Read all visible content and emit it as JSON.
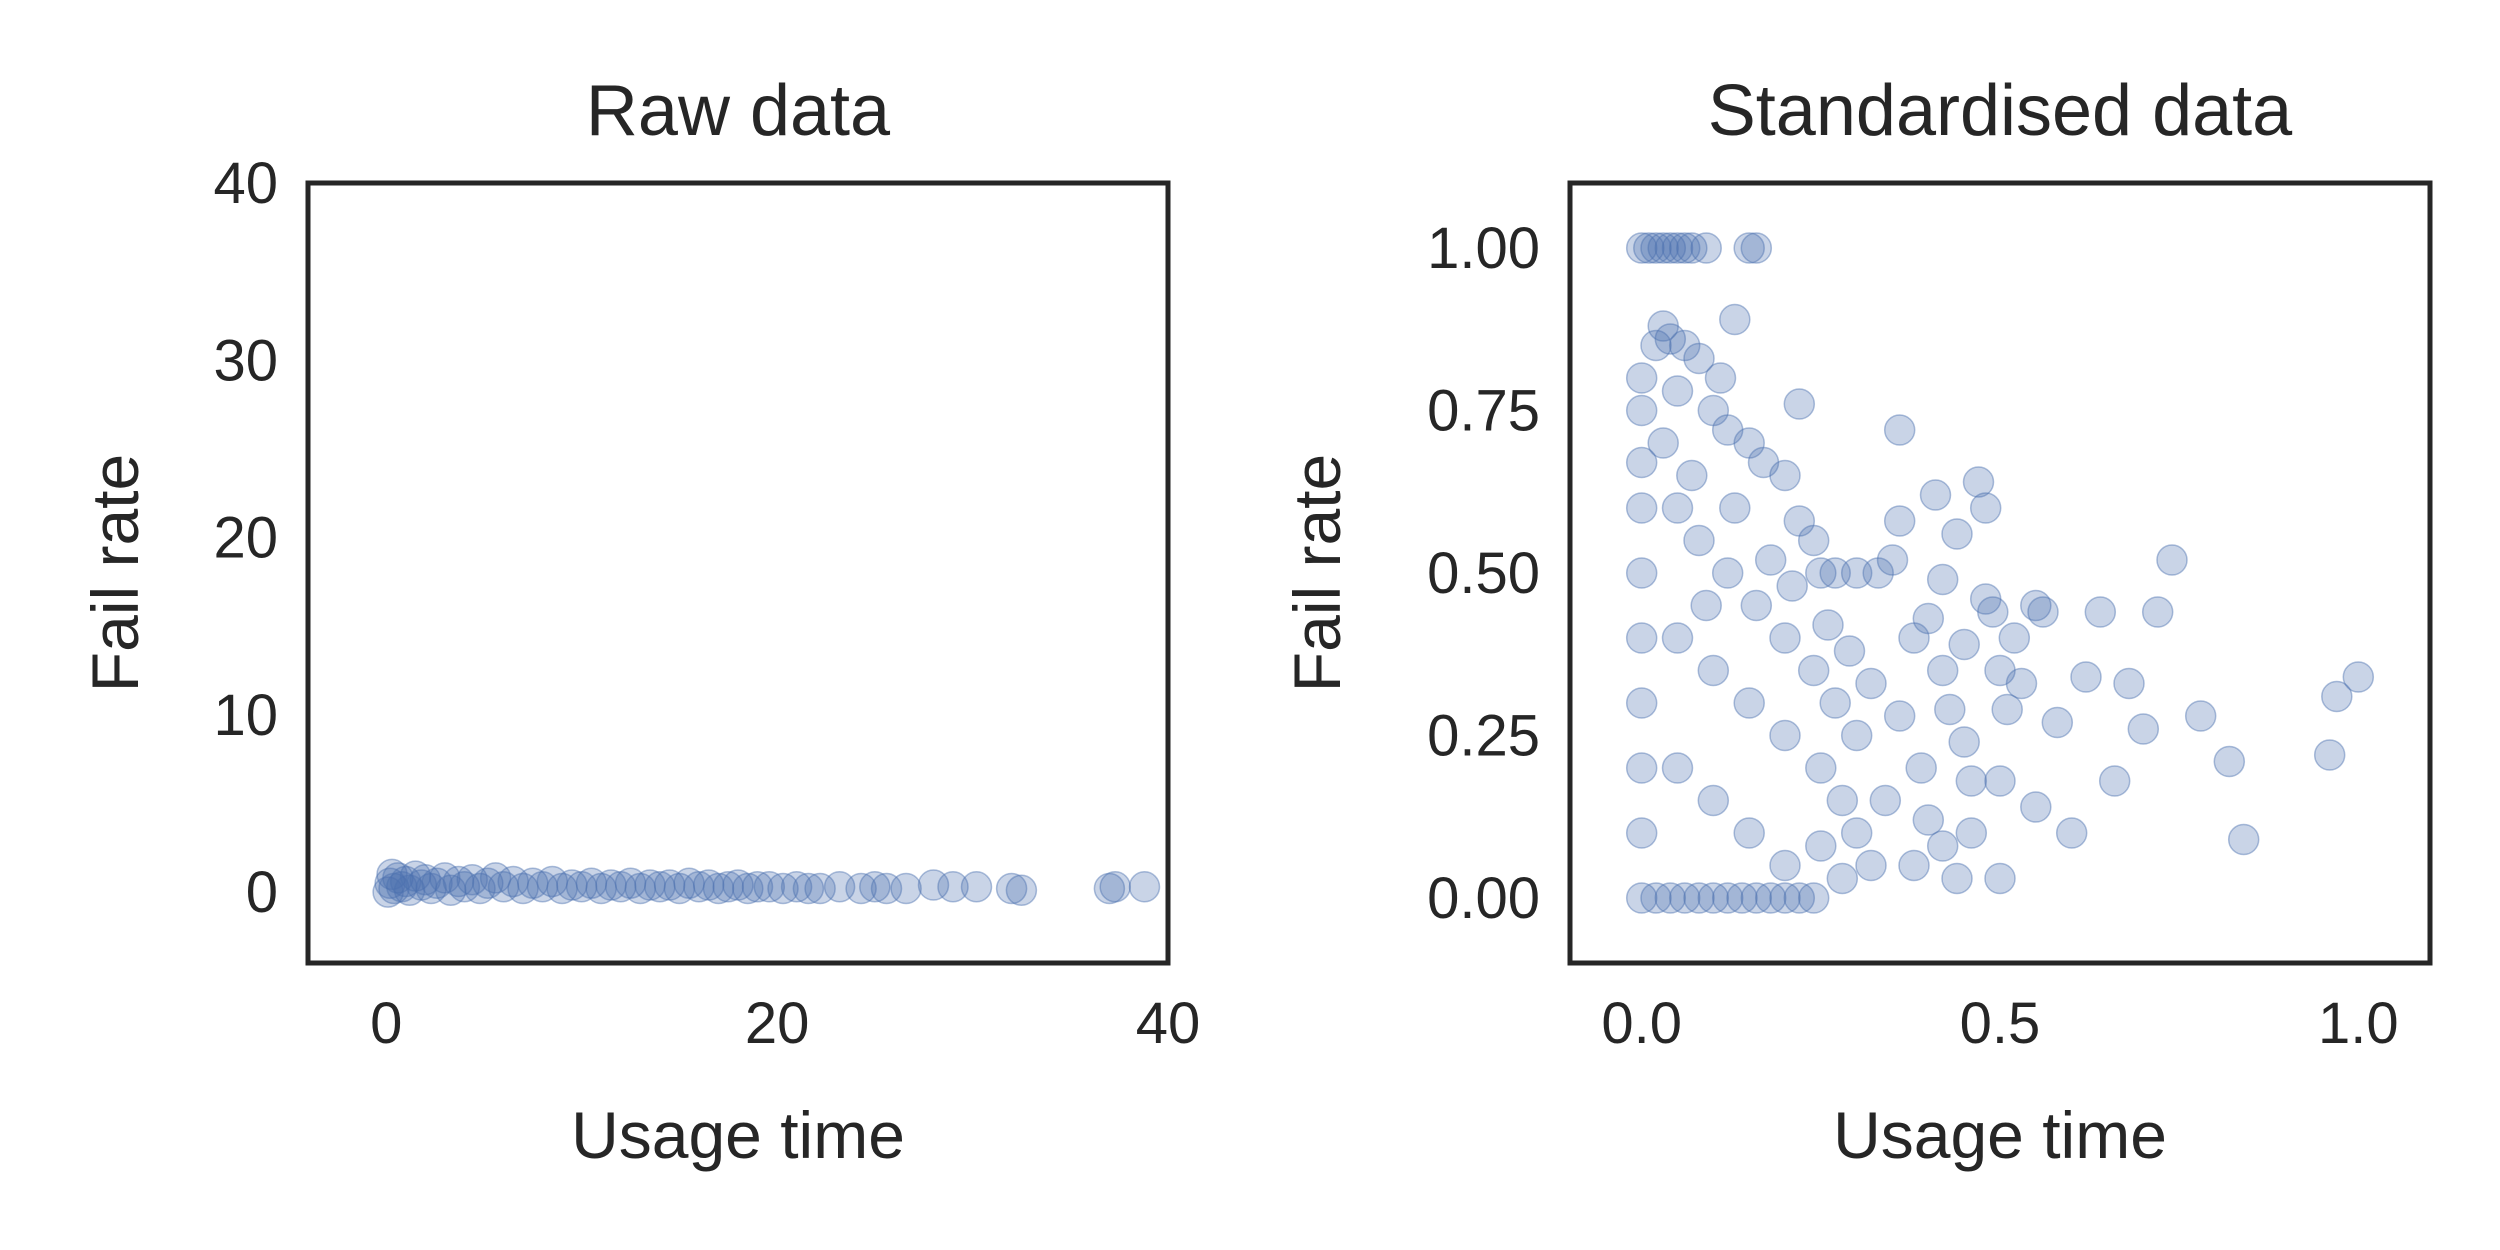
{
  "colors": {
    "point": "#4c72b0",
    "axes": "#262626",
    "text": "#262626",
    "background": "#ffffff"
  },
  "chart_data": [
    {
      "type": "scatter",
      "title": "Raw data",
      "xlabel": "Usage time",
      "ylabel": "Fail rate",
      "xlim": [
        -4,
        40
      ],
      "ylim": [
        -4,
        40
      ],
      "xticks": [
        0,
        20,
        40
      ],
      "xtick_labels": [
        "0",
        "20",
        "40"
      ],
      "yticks": [
        0,
        10,
        20,
        30,
        40
      ],
      "ytick_labels": [
        "0",
        "10",
        "20",
        "30",
        "40"
      ],
      "grid": false,
      "legend": "none",
      "point_alpha": 0.3,
      "series": [
        {
          "points": [
            [
              0.1,
              0.0
            ],
            [
              0.2,
              0.5
            ],
            [
              0.3,
              1.0
            ],
            [
              0.4,
              0.2
            ],
            [
              0.6,
              0.8
            ],
            [
              0.8,
              0.3
            ],
            [
              1.0,
              0.6
            ],
            [
              1.2,
              0.1
            ],
            [
              1.5,
              0.9
            ],
            [
              1.8,
              0.4
            ],
            [
              2.0,
              0.7
            ],
            [
              2.3,
              0.2
            ],
            [
              2.6,
              0.5
            ],
            [
              3.0,
              0.8
            ],
            [
              3.3,
              0.1
            ],
            [
              3.7,
              0.6
            ],
            [
              4.0,
              0.3
            ],
            [
              4.4,
              0.7
            ],
            [
              4.8,
              0.2
            ],
            [
              5.2,
              0.5
            ],
            [
              5.6,
              0.8
            ],
            [
              6.0,
              0.3
            ],
            [
              6.5,
              0.6
            ],
            [
              7.0,
              0.2
            ],
            [
              7.5,
              0.5
            ],
            [
              8.0,
              0.3
            ],
            [
              8.5,
              0.6
            ],
            [
              9.0,
              0.2
            ],
            [
              9.5,
              0.4
            ],
            [
              10.0,
              0.3
            ],
            [
              10.5,
              0.5
            ],
            [
              11.0,
              0.2
            ],
            [
              11.5,
              0.4
            ],
            [
              12.0,
              0.3
            ],
            [
              12.5,
              0.5
            ],
            [
              13.0,
              0.2
            ],
            [
              13.5,
              0.4
            ],
            [
              14.0,
              0.3
            ],
            [
              14.5,
              0.4
            ],
            [
              15.0,
              0.2
            ],
            [
              15.5,
              0.5
            ],
            [
              16.0,
              0.3
            ],
            [
              16.5,
              0.4
            ],
            [
              17.0,
              0.2
            ],
            [
              17.5,
              0.3
            ],
            [
              18.0,
              0.4
            ],
            [
              18.5,
              0.2
            ],
            [
              19.0,
              0.3
            ],
            [
              19.6,
              0.3
            ],
            [
              20.3,
              0.2
            ],
            [
              21.0,
              0.3
            ],
            [
              21.6,
              0.2
            ],
            [
              22.2,
              0.2
            ],
            [
              23.2,
              0.3
            ],
            [
              24.3,
              0.2
            ],
            [
              25.0,
              0.3
            ],
            [
              25.6,
              0.2
            ],
            [
              26.6,
              0.2
            ],
            [
              28.0,
              0.4
            ],
            [
              29.0,
              0.3
            ],
            [
              30.2,
              0.3
            ],
            [
              32.0,
              0.2
            ],
            [
              32.5,
              0.1
            ],
            [
              37.0,
              0.2
            ],
            [
              37.3,
              0.3
            ],
            [
              38.8,
              0.3
            ]
          ]
        }
      ]
    },
    {
      "type": "scatter",
      "title": "Standardised data",
      "xlabel": "Usage time",
      "ylabel": "Fail rate",
      "xlim": [
        -0.1,
        1.1
      ],
      "ylim": [
        -0.1,
        1.1
      ],
      "xticks": [
        0.0,
        0.5,
        1.0
      ],
      "xtick_labels": [
        "0.0",
        "0.5",
        "1.0"
      ],
      "yticks": [
        0.0,
        0.25,
        0.5,
        0.75,
        1.0
      ],
      "ytick_labels": [
        "0.00",
        "0.25",
        "0.50",
        "0.75",
        "1.00"
      ],
      "grid": false,
      "legend": "none",
      "point_alpha": 0.3,
      "series": [
        {
          "points": [
            [
              0.0,
              1.0
            ],
            [
              0.01,
              1.0
            ],
            [
              0.02,
              1.0
            ],
            [
              0.03,
              1.0
            ],
            [
              0.04,
              1.0
            ],
            [
              0.05,
              1.0
            ],
            [
              0.06,
              1.0
            ],
            [
              0.07,
              1.0
            ],
            [
              0.09,
              1.0
            ],
            [
              0.15,
              1.0
            ],
            [
              0.16,
              1.0
            ],
            [
              0.0,
              0.0
            ],
            [
              0.02,
              0.0
            ],
            [
              0.04,
              0.0
            ],
            [
              0.06,
              0.0
            ],
            [
              0.08,
              0.0
            ],
            [
              0.1,
              0.0
            ],
            [
              0.12,
              0.0
            ],
            [
              0.14,
              0.0
            ],
            [
              0.16,
              0.0
            ],
            [
              0.18,
              0.0
            ],
            [
              0.2,
              0.0
            ],
            [
              0.22,
              0.0
            ],
            [
              0.24,
              0.0
            ],
            [
              0.0,
              0.1
            ],
            [
              0.0,
              0.2
            ],
            [
              0.0,
              0.3
            ],
            [
              0.0,
              0.4
            ],
            [
              0.0,
              0.5
            ],
            [
              0.0,
              0.6
            ],
            [
              0.0,
              0.67
            ],
            [
              0.0,
              0.75
            ],
            [
              0.0,
              0.8
            ],
            [
              0.02,
              0.85
            ],
            [
              0.04,
              0.86
            ],
            [
              0.06,
              0.85
            ],
            [
              0.03,
              0.88
            ],
            [
              0.08,
              0.83
            ],
            [
              0.11,
              0.8
            ],
            [
              0.13,
              0.89
            ],
            [
              0.05,
              0.78
            ],
            [
              0.1,
              0.75
            ],
            [
              0.12,
              0.72
            ],
            [
              0.15,
              0.7
            ],
            [
              0.17,
              0.67
            ],
            [
              0.2,
              0.65
            ],
            [
              0.22,
              0.58
            ],
            [
              0.24,
              0.55
            ],
            [
              0.05,
              0.6
            ],
            [
              0.08,
              0.55
            ],
            [
              0.12,
              0.5
            ],
            [
              0.16,
              0.45
            ],
            [
              0.2,
              0.4
            ],
            [
              0.24,
              0.35
            ],
            [
              0.27,
              0.3
            ],
            [
              0.3,
              0.25
            ],
            [
              0.05,
              0.4
            ],
            [
              0.1,
              0.35
            ],
            [
              0.15,
              0.3
            ],
            [
              0.2,
              0.25
            ],
            [
              0.25,
              0.2
            ],
            [
              0.28,
              0.15
            ],
            [
              0.3,
              0.1
            ],
            [
              0.32,
              0.05
            ],
            [
              0.05,
              0.2
            ],
            [
              0.1,
              0.15
            ],
            [
              0.15,
              0.1
            ],
            [
              0.2,
              0.05
            ],
            [
              0.25,
              0.08
            ],
            [
              0.28,
              0.03
            ],
            [
              0.03,
              0.7
            ],
            [
              0.07,
              0.65
            ],
            [
              0.09,
              0.45
            ],
            [
              0.13,
              0.6
            ],
            [
              0.18,
              0.52
            ],
            [
              0.21,
              0.48
            ],
            [
              0.26,
              0.42
            ],
            [
              0.29,
              0.38
            ],
            [
              0.22,
              0.76
            ],
            [
              0.25,
              0.5
            ],
            [
              0.27,
              0.5
            ],
            [
              0.3,
              0.5
            ],
            [
              0.33,
              0.5
            ],
            [
              0.35,
              0.52
            ],
            [
              0.36,
              0.72
            ],
            [
              0.36,
              0.58
            ],
            [
              0.38,
              0.4
            ],
            [
              0.39,
              0.2
            ],
            [
              0.4,
              0.43
            ],
            [
              0.41,
              0.62
            ],
            [
              0.42,
              0.49
            ],
            [
              0.42,
              0.35
            ],
            [
              0.43,
              0.29
            ],
            [
              0.44,
              0.56
            ],
            [
              0.45,
              0.39
            ],
            [
              0.45,
              0.24
            ],
            [
              0.46,
              0.18
            ],
            [
              0.47,
              0.64
            ],
            [
              0.48,
              0.46
            ],
            [
              0.48,
              0.6
            ],
            [
              0.49,
              0.44
            ],
            [
              0.5,
              0.35
            ],
            [
              0.5,
              0.18
            ],
            [
              0.5,
              0.03
            ],
            [
              0.51,
              0.29
            ],
            [
              0.52,
              0.4
            ],
            [
              0.53,
              0.33
            ],
            [
              0.55,
              0.14
            ],
            [
              0.55,
              0.45
            ],
            [
              0.56,
              0.44
            ],
            [
              0.58,
              0.27
            ],
            [
              0.6,
              0.1
            ],
            [
              0.62,
              0.34
            ],
            [
              0.64,
              0.44
            ],
            [
              0.66,
              0.18
            ],
            [
              0.68,
              0.33
            ],
            [
              0.7,
              0.26
            ],
            [
              0.72,
              0.44
            ],
            [
              0.74,
              0.52
            ],
            [
              0.78,
              0.28
            ],
            [
              0.82,
              0.21
            ],
            [
              0.84,
              0.09
            ],
            [
              0.96,
              0.22
            ],
            [
              0.97,
              0.31
            ],
            [
              1.0,
              0.34
            ],
            [
              0.4,
              0.12
            ],
            [
              0.42,
              0.08
            ],
            [
              0.44,
              0.03
            ],
            [
              0.46,
              0.1
            ],
            [
              0.38,
              0.05
            ],
            [
              0.34,
              0.15
            ],
            [
              0.36,
              0.28
            ],
            [
              0.32,
              0.33
            ]
          ]
        }
      ]
    }
  ]
}
